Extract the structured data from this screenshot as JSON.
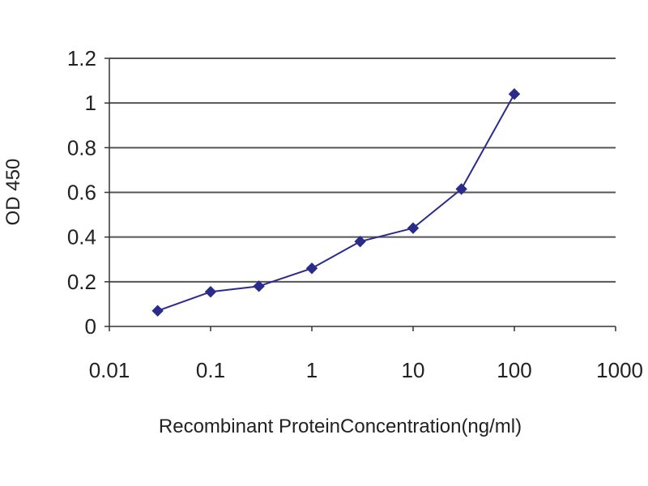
{
  "chart_data": {
    "type": "line",
    "title": "",
    "xlabel": "Recombinant ProteinConcentration(ng/ml)",
    "ylabel": "OD 450",
    "x_scale": "log",
    "xlim": [
      0.01,
      1000
    ],
    "ylim": [
      0,
      1.2
    ],
    "x_ticks": [
      "0.01",
      "0.1",
      "1",
      "10",
      "100",
      "1000"
    ],
    "y_ticks": [
      "0",
      "0.2",
      "0.4",
      "0.6",
      "0.8",
      "1",
      "1.2"
    ],
    "grid": "horizontal",
    "legend": "none",
    "series": [
      {
        "color": "#2b2b8c",
        "marker": "diamond",
        "x": [
          0.03,
          0.1,
          0.3,
          1,
          3,
          10,
          30,
          100
        ],
        "values": [
          0.07,
          0.155,
          0.18,
          0.26,
          0.38,
          0.44,
          0.615,
          1.04
        ]
      }
    ]
  }
}
